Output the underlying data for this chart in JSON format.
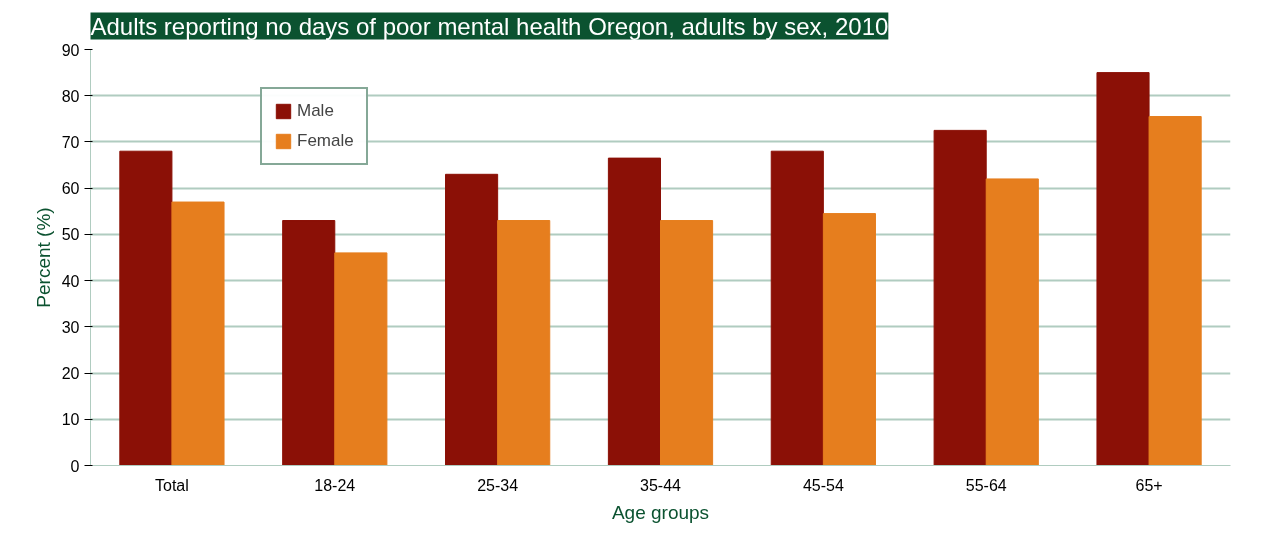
{
  "chart_data": {
    "type": "bar",
    "title": "Adults reporting no days of poor mental health Oregon, adults by sex, 2010",
    "xlabel": "Age groups",
    "ylabel": "Percent (%)",
    "categories": [
      "Total",
      "18-24",
      "25-34",
      "35-44",
      "45-54",
      "55-64",
      "65+"
    ],
    "series": [
      {
        "name": "Male",
        "color": "#8b1006",
        "values": [
          68,
          53,
          63,
          66.5,
          68,
          72.5,
          85
        ]
      },
      {
        "name": "Female",
        "color": "#e67e1e",
        "values": [
          57,
          46,
          53,
          53,
          54.5,
          62,
          75.5
        ]
      }
    ],
    "ylim": [
      0,
      90
    ],
    "yticks": [
      0,
      10,
      20,
      30,
      40,
      50,
      60,
      70,
      80,
      90
    ],
    "grid": "y",
    "legend": "top left"
  }
}
